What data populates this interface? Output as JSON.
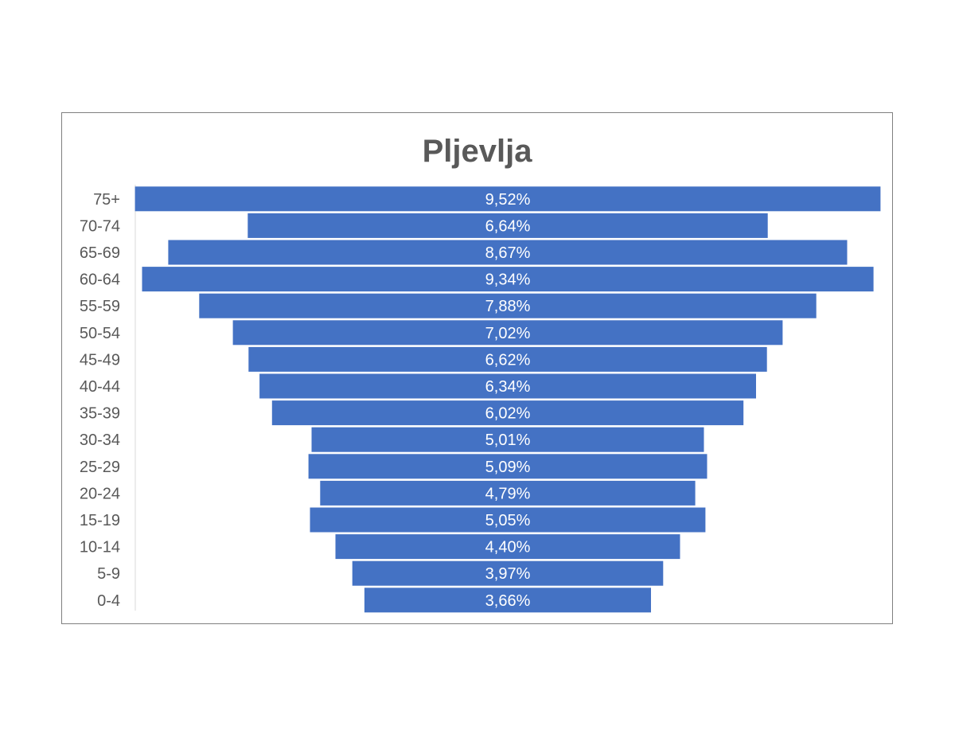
{
  "chart_data": {
    "type": "bar",
    "orientation": "horizontal",
    "title": "Pljevlja",
    "categories": [
      "75+",
      "70-74",
      "65-69",
      "60-64",
      "55-59",
      "50-54",
      "45-49",
      "40-44",
      "35-39",
      "30-34",
      "25-29",
      "20-24",
      "15-19",
      "10-14",
      "5-9",
      "0-4"
    ],
    "values": [
      9.52,
      6.64,
      8.67,
      9.34,
      7.88,
      7.02,
      6.62,
      6.34,
      6.02,
      5.01,
      5.09,
      4.79,
      5.05,
      4.4,
      3.97,
      3.66
    ],
    "data_labels": [
      "9,52%",
      "6,64%",
      "8,67%",
      "9,34%",
      "7,88%",
      "7,02%",
      "6,62%",
      "6,34%",
      "6,02%",
      "5,01%",
      "5,09%",
      "4,79%",
      "5,05%",
      "4,40%",
      "3,97%",
      "3,66%"
    ],
    "bar_alignment": "centered",
    "bar_color": "#4472C4",
    "label_color": "#ffffff",
    "grid": false,
    "legend": "none"
  }
}
